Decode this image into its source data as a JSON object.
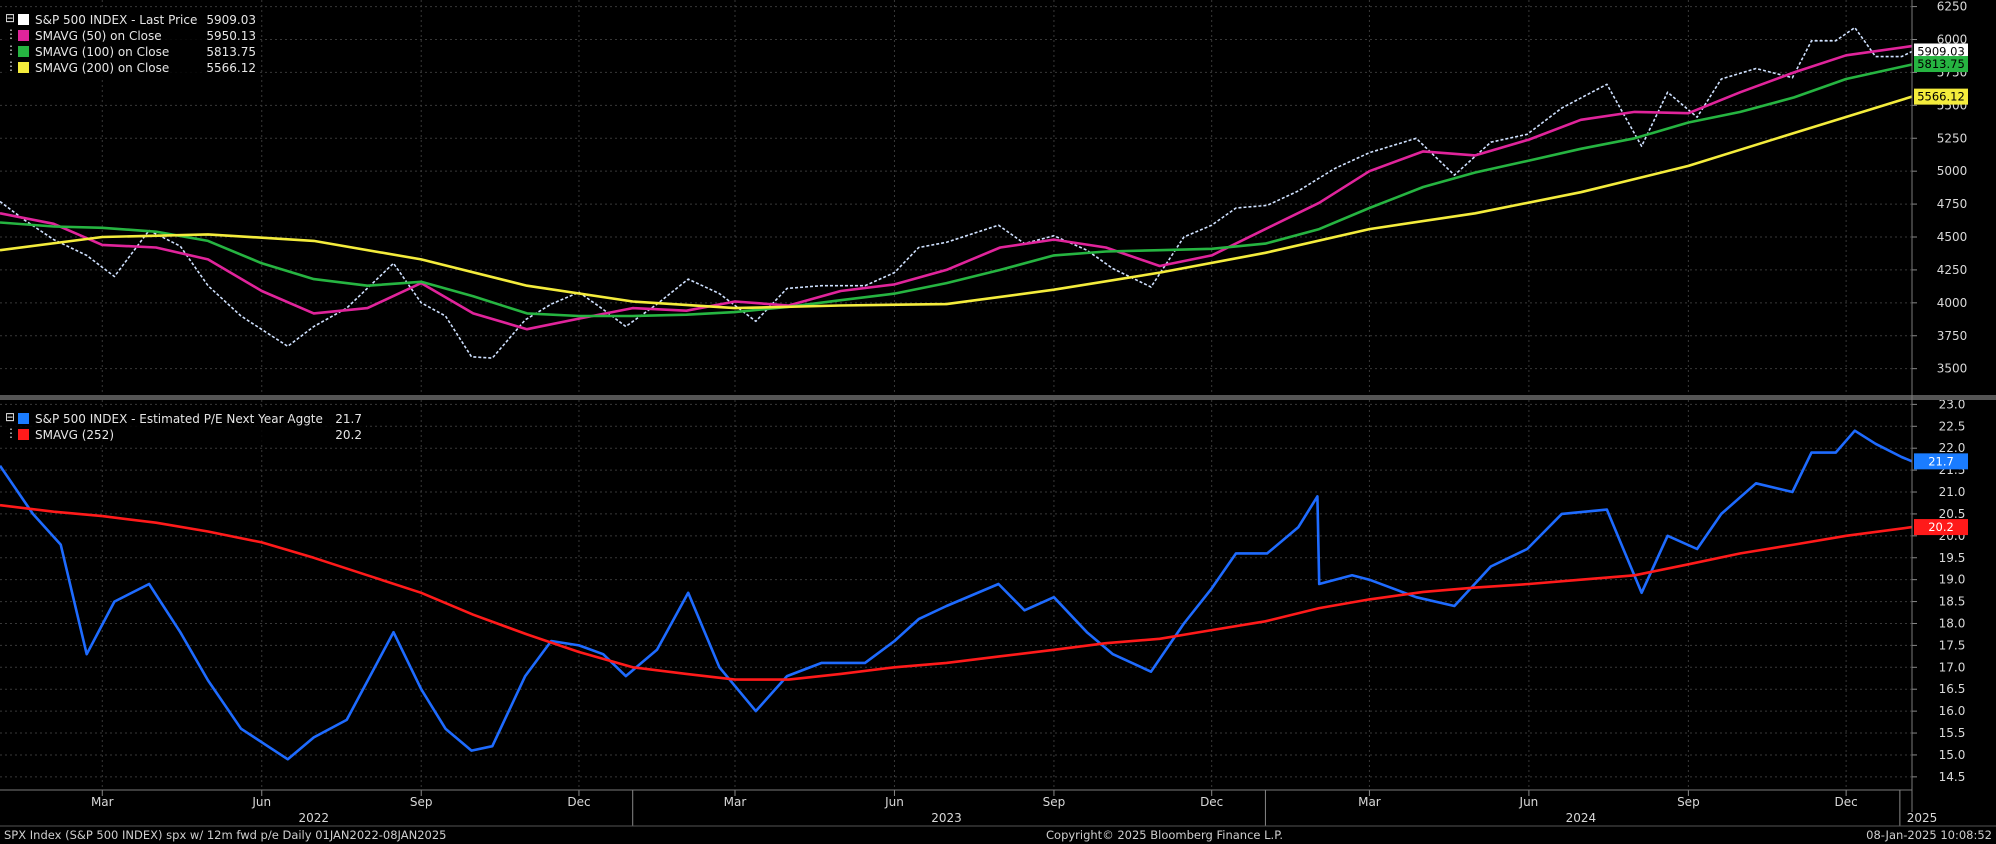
{
  "chart_data": [
    {
      "type": "line",
      "ylim": [
        3300,
        6300
      ],
      "xlim": [
        "2022-01-01",
        "2025-01-08"
      ],
      "yticks": [
        "6250",
        "6000",
        "5750",
        "5500",
        "5250",
        "5000",
        "4750",
        "4500",
        "4250",
        "4000",
        "3750",
        "3500"
      ],
      "grid": true,
      "legend_placement": "top-left",
      "legend": [
        {
          "label": "S&P 500 INDEX - Last Price",
          "value": "5909.03",
          "color": "#ffffff"
        },
        {
          "label": "SMAVG (50)  on Close",
          "value": "5950.13",
          "color": "#e0249b"
        },
        {
          "label": "SMAVG (100)  on Close",
          "value": "5813.75",
          "color": "#26b441"
        },
        {
          "label": "SMAVG (200)  on Close",
          "value": "5566.12",
          "color": "#f4ec3c"
        }
      ],
      "right_tags": [
        {
          "text": "5909.03",
          "value": 5909.03,
          "bg": "#ffffff",
          "fg": "#000000"
        },
        {
          "text": "5813.75",
          "value": 5813.75,
          "bg": "#26b441",
          "fg": "#000000"
        },
        {
          "text": "5566.12",
          "value": 5566.12,
          "bg": "#f4ec3c",
          "fg": "#000000"
        }
      ],
      "series": [
        {
          "name": "S&P 500 INDEX - Last Price",
          "color": "#cfe1ff",
          "dashed": true,
          "x": [
            "2022-01-01",
            "2022-01-15",
            "2022-02-01",
            "2022-02-20",
            "2022-03-08",
            "2022-03-28",
            "2022-04-15",
            "2022-05-01",
            "2022-05-20",
            "2022-06-16",
            "2022-07-01",
            "2022-07-20",
            "2022-08-16",
            "2022-09-01",
            "2022-09-15",
            "2022-09-30",
            "2022-10-12",
            "2022-10-31",
            "2022-11-15",
            "2022-12-01",
            "2022-12-15",
            "2022-12-28",
            "2023-01-15",
            "2023-02-02",
            "2023-02-20",
            "2023-03-13",
            "2023-03-31",
            "2023-04-20",
            "2023-05-15",
            "2023-06-01",
            "2023-06-15",
            "2023-07-01",
            "2023-07-31",
            "2023-08-15",
            "2023-09-01",
            "2023-09-20",
            "2023-10-05",
            "2023-10-27",
            "2023-11-15",
            "2023-12-01",
            "2023-12-15",
            "2024-01-02",
            "2024-01-20",
            "2024-02-10",
            "2024-03-01",
            "2024-03-28",
            "2024-04-19",
            "2024-05-10",
            "2024-05-31",
            "2024-06-20",
            "2024-07-16",
            "2024-08-05",
            "2024-08-20",
            "2024-09-06",
            "2024-09-20",
            "2024-10-10",
            "2024-10-31",
            "2024-11-11",
            "2024-11-25",
            "2024-12-06",
            "2024-12-18",
            "2025-01-02",
            "2025-01-08"
          ],
          "values": [
            4770,
            4630,
            4480,
            4360,
            4200,
            4550,
            4430,
            4130,
            3900,
            3670,
            3820,
            3960,
            4300,
            4000,
            3900,
            3590,
            3580,
            3870,
            3990,
            4080,
            3950,
            3820,
            3990,
            4180,
            4070,
            3860,
            4110,
            4130,
            4130,
            4230,
            4420,
            4460,
            4590,
            4450,
            4510,
            4400,
            4260,
            4120,
            4500,
            4590,
            4720,
            4740,
            4850,
            5020,
            5140,
            5250,
            4970,
            5220,
            5280,
            5480,
            5660,
            5190,
            5600,
            5410,
            5700,
            5780,
            5710,
            5990,
            5990,
            6090,
            5870,
            5870,
            5909
          ]
        },
        {
          "name": "SMAVG (50)  on Close",
          "color": "#e0249b",
          "x": [
            "2022-01-01",
            "2022-02-01",
            "2022-03-01",
            "2022-04-01",
            "2022-05-01",
            "2022-06-01",
            "2022-07-01",
            "2022-08-01",
            "2022-09-01",
            "2022-10-01",
            "2022-11-01",
            "2022-12-01",
            "2023-01-01",
            "2023-02-01",
            "2023-03-01",
            "2023-04-01",
            "2023-05-01",
            "2023-06-01",
            "2023-07-01",
            "2023-08-01",
            "2023-09-01",
            "2023-10-01",
            "2023-11-01",
            "2023-12-01",
            "2024-01-01",
            "2024-02-01",
            "2024-03-01",
            "2024-04-01",
            "2024-05-01",
            "2024-06-01",
            "2024-07-01",
            "2024-08-01",
            "2024-09-01",
            "2024-10-01",
            "2024-11-01",
            "2024-12-01",
            "2025-01-08"
          ],
          "values": [
            4680,
            4600,
            4440,
            4420,
            4330,
            4090,
            3920,
            3960,
            4150,
            3920,
            3800,
            3880,
            3960,
            3940,
            4010,
            3980,
            4090,
            4140,
            4250,
            4420,
            4480,
            4420,
            4280,
            4360,
            4560,
            4760,
            5000,
            5150,
            5120,
            5240,
            5390,
            5450,
            5440,
            5600,
            5750,
            5880,
            5950
          ]
        },
        {
          "name": "SMAVG (100)  on Close",
          "color": "#26b441",
          "x": [
            "2022-01-01",
            "2022-02-01",
            "2022-03-01",
            "2022-04-01",
            "2022-05-01",
            "2022-06-01",
            "2022-07-01",
            "2022-08-01",
            "2022-09-01",
            "2022-10-01",
            "2022-11-01",
            "2022-12-01",
            "2023-01-01",
            "2023-02-01",
            "2023-03-01",
            "2023-04-01",
            "2023-05-01",
            "2023-06-01",
            "2023-07-01",
            "2023-08-01",
            "2023-09-01",
            "2023-10-01",
            "2023-11-01",
            "2023-12-01",
            "2024-01-01",
            "2024-02-01",
            "2024-03-01",
            "2024-04-01",
            "2024-05-01",
            "2024-06-01",
            "2024-07-01",
            "2024-08-01",
            "2024-09-01",
            "2024-10-01",
            "2024-11-01",
            "2024-12-01",
            "2025-01-08"
          ],
          "values": [
            4610,
            4580,
            4570,
            4540,
            4470,
            4300,
            4180,
            4130,
            4160,
            4050,
            3920,
            3900,
            3900,
            3910,
            3930,
            3970,
            4020,
            4070,
            4150,
            4250,
            4360,
            4390,
            4400,
            4410,
            4450,
            4560,
            4720,
            4880,
            4990,
            5080,
            5170,
            5250,
            5370,
            5450,
            5560,
            5700,
            5810
          ]
        },
        {
          "name": "SMAVG (200)  on Close",
          "color": "#f4ec3c",
          "x": [
            "2022-01-01",
            "2022-03-01",
            "2022-05-01",
            "2022-07-01",
            "2022-09-01",
            "2022-11-01",
            "2023-01-01",
            "2023-03-01",
            "2023-05-01",
            "2023-07-01",
            "2023-09-01",
            "2023-11-01",
            "2024-01-01",
            "2024-03-01",
            "2024-05-01",
            "2024-07-01",
            "2024-09-01",
            "2024-11-01",
            "2025-01-08"
          ],
          "values": [
            4400,
            4500,
            4520,
            4470,
            4330,
            4130,
            4010,
            3960,
            3980,
            3990,
            4100,
            4230,
            4380,
            4560,
            4680,
            4840,
            5040,
            5290,
            5566
          ]
        }
      ]
    },
    {
      "type": "line",
      "ylim": [
        14.2,
        23.1
      ],
      "xlim": [
        "2022-01-01",
        "2025-01-08"
      ],
      "yticks": [
        "23.0",
        "22.5",
        "22.0",
        "21.5",
        "21.0",
        "20.5",
        "20.0",
        "19.5",
        "19.0",
        "18.5",
        "18.0",
        "17.5",
        "17.0",
        "16.5",
        "16.0",
        "15.5",
        "15.0",
        "14.5"
      ],
      "grid": true,
      "legend_placement": "top-left",
      "legend": [
        {
          "label": "S&P 500 INDEX - Estimated P/E Next Year Aggte",
          "value": "21.7",
          "color": "#1a7cff"
        },
        {
          "label": "SMAVG (252)",
          "value": "20.2",
          "color": "#ff1a1a"
        }
      ],
      "right_tags": [
        {
          "text": "21.7",
          "value": 21.7,
          "bg": "#1a7cff",
          "fg": "#ffffff"
        },
        {
          "text": "20.2",
          "value": 20.2,
          "bg": "#ff1a1a",
          "fg": "#ffffff"
        }
      ],
      "series": [
        {
          "name": "S&P 500 INDEX - Estimated P/E Next Year Aggte",
          "color": "#1e6bff",
          "x": [
            "2022-01-01",
            "2022-01-20",
            "2022-02-05",
            "2022-02-20",
            "2022-03-08",
            "2022-03-28",
            "2022-04-15",
            "2022-05-01",
            "2022-05-20",
            "2022-06-16",
            "2022-07-01",
            "2022-07-20",
            "2022-08-16",
            "2022-09-01",
            "2022-09-15",
            "2022-09-30",
            "2022-10-12",
            "2022-10-31",
            "2022-11-15",
            "2022-12-01",
            "2022-12-15",
            "2022-12-28",
            "2023-01-15",
            "2023-02-02",
            "2023-02-20",
            "2023-03-13",
            "2023-03-31",
            "2023-04-20",
            "2023-05-15",
            "2023-06-01",
            "2023-06-15",
            "2023-07-01",
            "2023-07-31",
            "2023-08-15",
            "2023-09-01",
            "2023-09-20",
            "2023-10-05",
            "2023-10-27",
            "2023-11-15",
            "2023-12-01",
            "2023-12-15",
            "2024-01-02",
            "2024-01-20",
            "2024-01-31",
            "2024-02-01",
            "2024-02-20",
            "2024-03-01",
            "2024-03-28",
            "2024-04-19",
            "2024-05-10",
            "2024-05-31",
            "2024-06-20",
            "2024-07-16",
            "2024-08-05",
            "2024-08-20",
            "2024-09-06",
            "2024-09-20",
            "2024-10-10",
            "2024-10-31",
            "2024-11-11",
            "2024-11-25",
            "2024-12-06",
            "2024-12-18",
            "2025-01-02",
            "2025-01-08"
          ],
          "values": [
            21.6,
            20.5,
            19.8,
            17.3,
            18.5,
            18.9,
            17.8,
            16.7,
            15.6,
            14.9,
            15.4,
            15.8,
            17.8,
            16.5,
            15.6,
            15.1,
            15.2,
            16.8,
            17.6,
            17.5,
            17.3,
            16.8,
            17.4,
            18.7,
            17.0,
            16.0,
            16.8,
            17.1,
            17.1,
            17.6,
            18.1,
            18.4,
            18.9,
            18.3,
            18.6,
            17.8,
            17.3,
            16.9,
            18.0,
            18.8,
            19.6,
            19.6,
            20.2,
            20.9,
            18.9,
            19.1,
            19.0,
            18.6,
            18.4,
            19.3,
            19.7,
            20.5,
            20.6,
            18.7,
            20.0,
            19.7,
            20.5,
            21.2,
            21.0,
            21.9,
            21.9,
            22.4,
            22.1,
            21.8,
            21.7
          ]
        },
        {
          "name": "SMAVG (252)",
          "color": "#ff1a1a",
          "x": [
            "2022-01-01",
            "2022-02-01",
            "2022-03-01",
            "2022-04-01",
            "2022-05-01",
            "2022-06-01",
            "2022-07-01",
            "2022-08-01",
            "2022-09-01",
            "2022-10-01",
            "2022-11-01",
            "2022-12-01",
            "2023-01-01",
            "2023-02-01",
            "2023-03-01",
            "2023-04-01",
            "2023-05-01",
            "2023-06-01",
            "2023-07-01",
            "2023-08-01",
            "2023-09-01",
            "2023-10-01",
            "2023-11-01",
            "2023-12-01",
            "2024-01-01",
            "2024-02-01",
            "2024-03-01",
            "2024-04-01",
            "2024-05-01",
            "2024-06-01",
            "2024-07-01",
            "2024-08-01",
            "2024-09-01",
            "2024-10-01",
            "2024-11-01",
            "2024-12-01",
            "2025-01-08"
          ],
          "values": [
            20.7,
            20.55,
            20.45,
            20.3,
            20.1,
            19.85,
            19.5,
            19.1,
            18.7,
            18.2,
            17.75,
            17.35,
            17.0,
            16.85,
            16.72,
            16.72,
            16.85,
            17.0,
            17.1,
            17.25,
            17.4,
            17.55,
            17.65,
            17.85,
            18.05,
            18.35,
            18.55,
            18.72,
            18.82,
            18.9,
            19.0,
            19.1,
            19.35,
            19.6,
            19.8,
            20.0,
            20.2
          ]
        }
      ]
    }
  ],
  "x_axis": {
    "month_labels": [
      {
        "text": "Mar",
        "date": "2022-03-01"
      },
      {
        "text": "Jun",
        "date": "2022-06-01"
      },
      {
        "text": "Sep",
        "date": "2022-09-01"
      },
      {
        "text": "Dec",
        "date": "2022-12-01"
      },
      {
        "text": "Mar",
        "date": "2023-03-01"
      },
      {
        "text": "Jun",
        "date": "2023-06-01"
      },
      {
        "text": "Sep",
        "date": "2023-09-01"
      },
      {
        "text": "Dec",
        "date": "2023-12-01"
      },
      {
        "text": "Mar",
        "date": "2024-03-01"
      },
      {
        "text": "Jun",
        "date": "2024-06-01"
      },
      {
        "text": "Sep",
        "date": "2024-09-01"
      },
      {
        "text": "Dec",
        "date": "2024-12-01"
      }
    ],
    "year_labels": [
      {
        "text": "2022",
        "date": "2022-07-01"
      },
      {
        "text": "2023",
        "date": "2023-07-01"
      },
      {
        "text": "2024",
        "date": "2024-07-01"
      },
      {
        "text": "2025",
        "date": "2025-01-08"
      }
    ]
  },
  "footer": {
    "left": "SPX Index (S&P 500 INDEX) spx w/ 12m fwd p/e  Daily 01JAN2022-08JAN2025",
    "center": "Copyright© 2025 Bloomberg Finance L.P.",
    "right": "08-Jan-2025 10:08:52"
  },
  "colors": {
    "background": "#000000",
    "grid": "#3a3a3a",
    "axis_text": "#d8d8d8"
  }
}
